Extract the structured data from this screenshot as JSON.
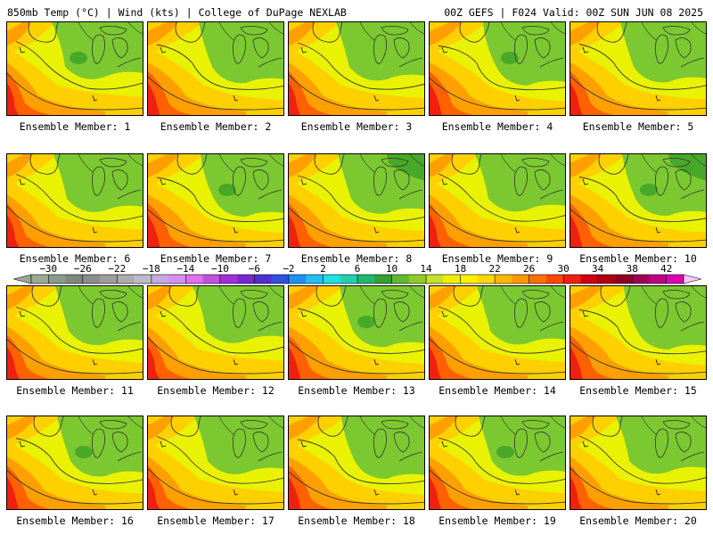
{
  "header": {
    "left": "850mb Temp (°C) | Wind (kts) | College of DuPage NEXLAB",
    "right": "00Z GEFS | F024 Valid: 00Z SUN JUN 08 2025"
  },
  "member_label_prefix": "Ensemble Member: ",
  "members": [
    1,
    2,
    3,
    4,
    5,
    6,
    7,
    8,
    9,
    10,
    11,
    12,
    13,
    14,
    15,
    16,
    17,
    18,
    19,
    20
  ],
  "colorbar": {
    "ticks": [
      -30,
      -26,
      -22,
      -18,
      -14,
      -10,
      -6,
      -2,
      2,
      6,
      10,
      14,
      18,
      22,
      26,
      30,
      34,
      38,
      42
    ],
    "min": -32,
    "max": 44,
    "step": 2,
    "colors": [
      "#9aa894",
      "#8a9a88",
      "#7c8a7c",
      "#8c8c8c",
      "#9c9c9c",
      "#acacac",
      "#bcbcc8",
      "#c8a8e0",
      "#d890f0",
      "#e070f0",
      "#c050e0",
      "#a030d8",
      "#7828d0",
      "#5030d0",
      "#3050e0",
      "#2090f0",
      "#20c0f0",
      "#20e0e0",
      "#20d0b0",
      "#20b870",
      "#30a030",
      "#60b830",
      "#90cc28",
      "#c8e028",
      "#eef000",
      "#fff000",
      "#ffd800",
      "#ffb800",
      "#ff9800",
      "#ff7000",
      "#ff4800",
      "#f02010",
      "#d00010",
      "#b00010",
      "#900020",
      "#a00050",
      "#c00080",
      "#e000b0",
      "#f040d8",
      "#f080f0"
    ]
  },
  "colors": {
    "cool": "#7cc830",
    "mid": "#e9f200",
    "warm1": "#ffd000",
    "warm2": "#ffa000",
    "warm3": "#ff6000",
    "hot": "#f02010",
    "deepcool": "#48a828"
  }
}
